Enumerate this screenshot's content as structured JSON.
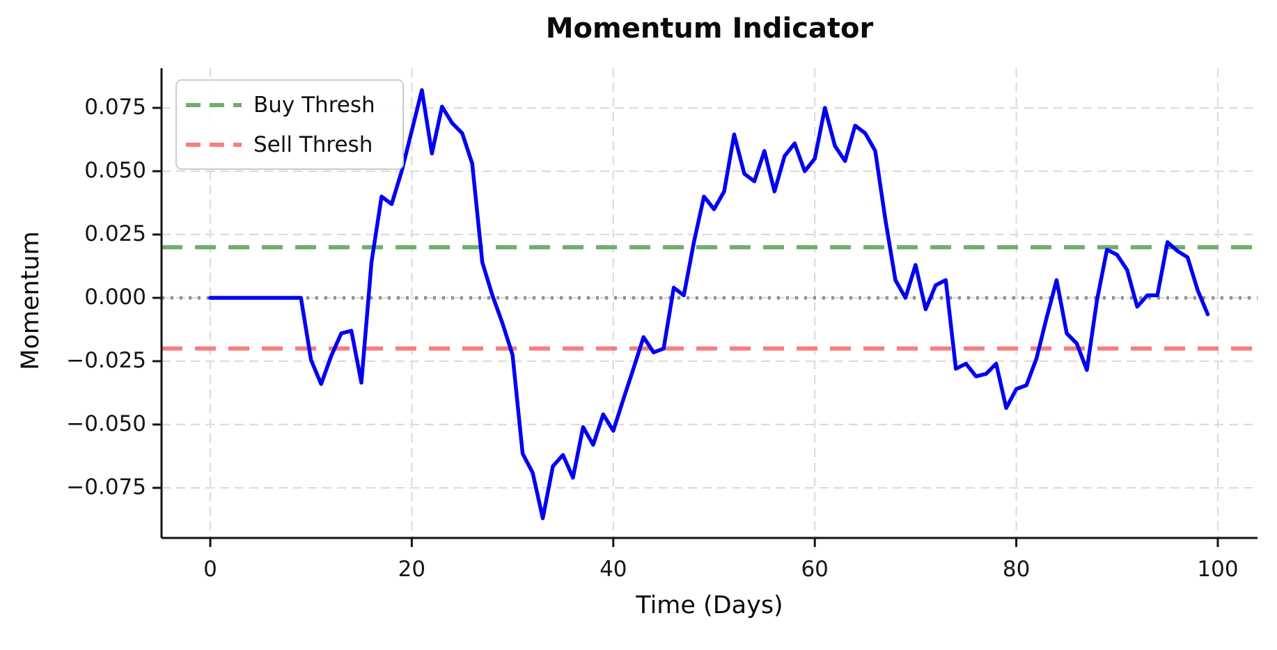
{
  "title": "Momentum Indicator",
  "xlabel": "Time (Days)",
  "ylabel": "Momentum",
  "legend": [
    {
      "label": "Buy Thresh",
      "color": "#6eae6e"
    },
    {
      "label": "Sell Thresh",
      "color": "#f87d7d"
    }
  ],
  "colors": {
    "momentum_line": "#0000f2",
    "buy_threshold": "#6eae6e",
    "sell_threshold": "#f87d7d",
    "zero_line": "#909090",
    "gridline": "#dcdcdc",
    "spine": "#111111"
  },
  "chart_data": {
    "type": "line",
    "title": "Momentum Indicator",
    "xlabel": "Time (Days)",
    "ylabel": "Momentum",
    "grid": true,
    "legend_position": "upper left",
    "x_ticks": [
      0,
      20,
      40,
      60,
      80,
      100
    ],
    "x_tick_labels": [
      "0",
      "20",
      "40",
      "60",
      "80",
      "100"
    ],
    "y_ticks": [
      0.075,
      0.05,
      0.025,
      0.0,
      -0.025,
      -0.05,
      -0.075
    ],
    "y_tick_labels": [
      "0.075",
      "0.050",
      "0.025",
      "0.000",
      "−0.025",
      "−0.050",
      "−0.075"
    ],
    "xlim": [
      -4.95,
      103.95
    ],
    "ylim": [
      -0.0955,
      0.0905
    ],
    "series": [
      {
        "name": "Momentum",
        "style": "solid",
        "color": "#0000f2",
        "x_start": 0,
        "x_step": 1,
        "y": [
          0.0,
          0.0,
          0.0,
          0.0,
          0.0,
          0.0,
          0.0,
          0.0,
          0.0,
          0.0,
          -0.0245,
          -0.034,
          -0.023,
          -0.014,
          -0.013,
          -0.0335,
          0.014,
          0.04,
          0.037,
          0.05,
          0.066,
          0.082,
          0.057,
          0.0755,
          0.069,
          0.065,
          0.053,
          0.014,
          0.001,
          -0.01,
          -0.0225,
          -0.0615,
          -0.069,
          -0.087,
          -0.0665,
          -0.062,
          -0.071,
          -0.051,
          -0.058,
          -0.046,
          -0.0525,
          -0.04,
          -0.028,
          -0.0155,
          -0.0215,
          -0.02,
          0.004,
          0.001,
          0.022,
          0.04,
          0.035,
          0.042,
          0.0645,
          0.049,
          0.046,
          0.058,
          0.042,
          0.056,
          0.061,
          0.05,
          0.055,
          0.075,
          0.06,
          0.054,
          0.068,
          0.065,
          0.058,
          0.031,
          0.007,
          0.0,
          0.013,
          -0.0045,
          0.005,
          0.007,
          -0.028,
          -0.026,
          -0.031,
          -0.03,
          -0.026,
          -0.0435,
          -0.036,
          -0.0345,
          -0.024,
          -0.008,
          0.007,
          -0.014,
          -0.018,
          -0.0285,
          -0.001,
          0.019,
          0.017,
          0.011,
          -0.0035,
          0.001,
          0.001,
          0.022,
          0.0185,
          0.016,
          0.003,
          -0.0065
        ]
      },
      {
        "name": "Buy Thresh",
        "style": "dashed",
        "color": "#6eae6e",
        "y_const": 0.02
      },
      {
        "name": "Sell Thresh",
        "style": "dashed",
        "color": "#f87d7d",
        "y_const": -0.02
      },
      {
        "name": "Zero Line",
        "style": "dotted",
        "color": "#909090",
        "y_const": 0.0
      }
    ]
  }
}
